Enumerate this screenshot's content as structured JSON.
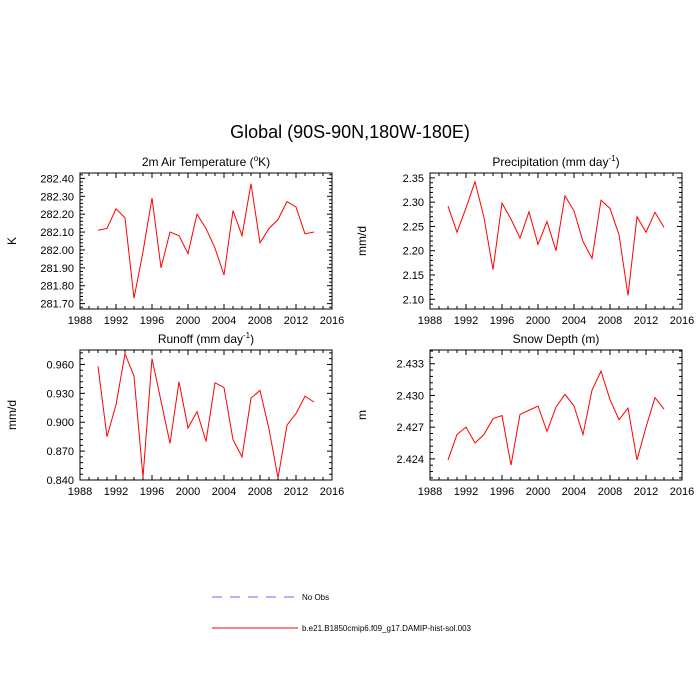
{
  "title": "Global (90S-90N,180W-180E)",
  "legend": [
    {
      "label": "No Obs",
      "color": "#6464ff",
      "style": "dashed"
    },
    {
      "label": "b.e21.B1850cmip6.f09_g17.DAMIP-hist-sol.003",
      "color": "#ff0000",
      "style": "solid"
    }
  ],
  "chart_data": [
    {
      "type": "line",
      "title": "2m Air Temperature",
      "title_unit": "K",
      "title_unit_sup": "o",
      "ylabel": "K",
      "x": [
        1990,
        1991,
        1992,
        1993,
        1994,
        1995,
        1996,
        1997,
        1998,
        1999,
        2000,
        2001,
        2002,
        2003,
        2004,
        2005,
        2006,
        2007,
        2008,
        2009,
        2010,
        2011,
        2012,
        2013,
        2014
      ],
      "series": [
        {
          "color": "#ff0000",
          "values": [
            282.11,
            282.12,
            282.23,
            282.18,
            281.73,
            281.99,
            282.29,
            281.9,
            282.1,
            282.08,
            281.98,
            282.2,
            282.12,
            282.01,
            281.86,
            282.22,
            282.08,
            282.37,
            282.04,
            282.12,
            282.17,
            282.27,
            282.24,
            282.09,
            282.1
          ]
        }
      ],
      "xlim": [
        1988,
        2016
      ],
      "xticks": [
        1988,
        1992,
        1996,
        2000,
        2004,
        2008,
        2012,
        2016
      ],
      "ylim": [
        281.67,
        282.43
      ],
      "yticks": [
        281.7,
        281.8,
        281.9,
        282.0,
        282.1,
        282.2,
        282.3,
        282.4
      ],
      "ytick_labels": [
        "281.70",
        "281.80",
        "281.90",
        "282.00",
        "282.10",
        "282.20",
        "282.30",
        "282.40"
      ]
    },
    {
      "type": "line",
      "title": "Precipitation",
      "title_unit": "mm day",
      "title_unit_sup": "-1",
      "ylabel": "mm/d",
      "x": [
        1990,
        1991,
        1992,
        1993,
        1994,
        1995,
        1996,
        1997,
        1998,
        1999,
        2000,
        2001,
        2002,
        2003,
        2004,
        2005,
        2006,
        2007,
        2008,
        2009,
        2010,
        2011,
        2012,
        2013,
        2014
      ],
      "series": [
        {
          "color": "#ff0000",
          "values": [
            2.292,
            2.238,
            2.288,
            2.342,
            2.268,
            2.161,
            2.298,
            2.265,
            2.226,
            2.28,
            2.213,
            2.26,
            2.2,
            2.313,
            2.282,
            2.219,
            2.184,
            2.304,
            2.287,
            2.233,
            2.108,
            2.27,
            2.238,
            2.279,
            2.248
          ]
        }
      ],
      "xlim": [
        1988,
        2016
      ],
      "xticks": [
        1988,
        1992,
        1996,
        2000,
        2004,
        2008,
        2012,
        2016
      ],
      "ylim": [
        2.08,
        2.36
      ],
      "yticks": [
        2.1,
        2.15,
        2.2,
        2.25,
        2.3,
        2.35
      ],
      "ytick_labels": [
        "2.10",
        "2.15",
        "2.20",
        "2.25",
        "2.30",
        "2.35"
      ]
    },
    {
      "type": "line",
      "title": "Runoff",
      "title_unit": "mm day",
      "title_unit_sup": "-1",
      "ylabel": "mm/d",
      "x": [
        1990,
        1991,
        1992,
        1993,
        1994,
        1995,
        1996,
        1997,
        1998,
        1999,
        2000,
        2001,
        2002,
        2003,
        2004,
        2005,
        2006,
        2007,
        2008,
        2009,
        2010,
        2011,
        2012,
        2013,
        2014
      ],
      "series": [
        {
          "color": "#ff0000",
          "values": [
            0.958,
            0.885,
            0.918,
            0.971,
            0.948,
            0.843,
            0.966,
            0.922,
            0.878,
            0.942,
            0.894,
            0.911,
            0.88,
            0.941,
            0.936,
            0.882,
            0.864,
            0.925,
            0.933,
            0.893,
            0.842,
            0.897,
            0.909,
            0.927,
            0.921
          ]
        }
      ],
      "xlim": [
        1988,
        2016
      ],
      "xticks": [
        1988,
        1992,
        1996,
        2000,
        2004,
        2008,
        2012,
        2016
      ],
      "ylim": [
        0.84,
        0.975
      ],
      "yticks": [
        0.84,
        0.87,
        0.9,
        0.93,
        0.96
      ],
      "ytick_labels": [
        "0.840",
        "0.870",
        "0.900",
        "0.930",
        "0.960"
      ]
    },
    {
      "type": "line",
      "title": "Snow Depth (m)",
      "title_unit": "",
      "title_unit_sup": "",
      "ylabel": "m",
      "x": [
        1990,
        1991,
        1992,
        1993,
        1994,
        1995,
        1996,
        1997,
        1998,
        1999,
        2000,
        2001,
        2002,
        2003,
        2004,
        2005,
        2006,
        2007,
        2008,
        2009,
        2010,
        2011,
        2012,
        2013,
        2014
      ],
      "series": [
        {
          "color": "#ff0000",
          "values": [
            2.4239,
            2.4263,
            2.427,
            2.4255,
            2.4263,
            2.4278,
            2.4281,
            2.4234,
            2.4282,
            2.4286,
            2.429,
            2.4266,
            2.4289,
            2.4301,
            2.429,
            2.4263,
            2.4305,
            2.4323,
            2.4296,
            2.4277,
            2.4288,
            2.4239,
            2.427,
            2.4298,
            2.4287
          ]
        }
      ],
      "xlim": [
        1988,
        2016
      ],
      "xticks": [
        1988,
        1992,
        1996,
        2000,
        2004,
        2008,
        2012,
        2016
      ],
      "ylim": [
        2.422,
        2.4343
      ],
      "yticks": [
        2.424,
        2.427,
        2.43,
        2.433
      ],
      "ytick_labels": [
        "2.424",
        "2.427",
        "2.430",
        "2.433"
      ]
    }
  ]
}
